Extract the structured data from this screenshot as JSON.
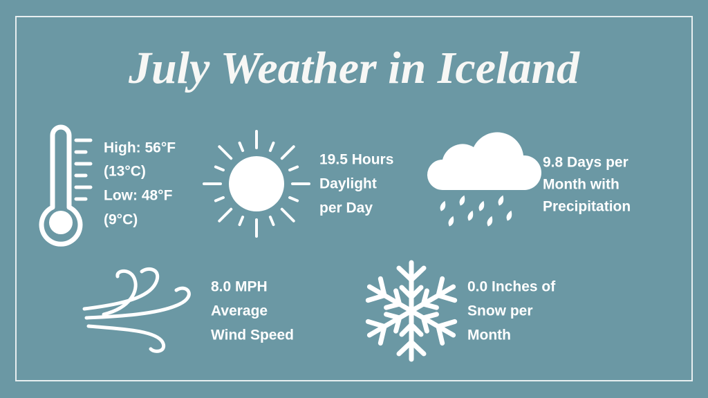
{
  "title": "July Weather in Iceland",
  "items": [
    {
      "lines": [
        "High: 56°F",
        "(13°C)",
        "Low: 48°F",
        "(9°C)"
      ]
    },
    {
      "lines": [
        "19.5 Hours",
        "Daylight",
        "per Day"
      ]
    },
    {
      "lines": [
        "9.8 Days per",
        "Month with",
        "Precipitation"
      ]
    },
    {
      "lines": [
        "8.0 MPH",
        "Average",
        "Wind Speed"
      ]
    },
    {
      "lines": [
        "0.0 Inches of",
        "Snow per",
        "Month"
      ]
    }
  ]
}
